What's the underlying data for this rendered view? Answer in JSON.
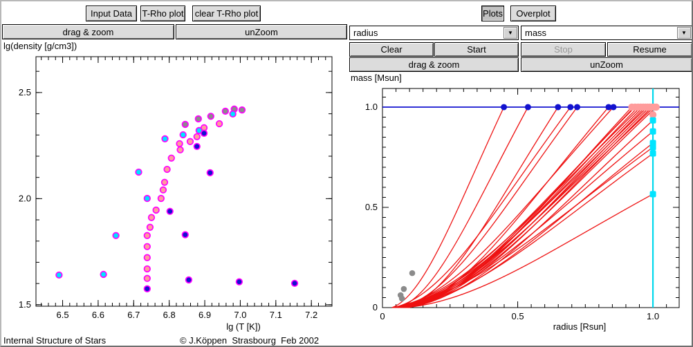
{
  "footer": {
    "app_title": "Internal Structure of Stars",
    "credit": "© J.Köppen  Strasbourg  Feb 2002"
  },
  "left_panel": {
    "buttons": {
      "input_data": "Input Data",
      "trho_plot": "T-Rho plot",
      "clear_trho": "clear T-Rho plot",
      "drag_zoom": "drag & zoom",
      "unzoom": "unZoom"
    }
  },
  "right_panel": {
    "buttons": {
      "plots": "Plots",
      "overplot": "Overplot",
      "clear": "Clear",
      "start": "Start",
      "stop": "Stop",
      "resume": "Resume",
      "drag_zoom": "drag & zoom",
      "unzoom": "unZoom"
    },
    "dropdowns": {
      "x_variable": "radius",
      "y_variable": "mass"
    }
  },
  "colors": {
    "marker_ring": "#ff00ff",
    "cyan_fill": "#00e4ff",
    "salmon_fill": "#ff9c9c",
    "gray_fill": "#8b8b8b",
    "blue_fill": "#1212cf",
    "red_curve": "#ee1111",
    "mass_limit_line": "#0000cc",
    "radius_limit_line": "#00d8ec",
    "button_gray": "#dcdcdc"
  },
  "chart_data": [
    {
      "type": "scatter",
      "title": "T-Rho diagram",
      "xlabel": "lg (T [K])",
      "ylabel": "lg(density [g/cm3])",
      "xlim": [
        6.425,
        7.258
      ],
      "ylim": [
        1.493,
        2.669
      ],
      "x_ticks": {
        "values": [
          6.5,
          6.6,
          6.7,
          6.8,
          6.9,
          7.0,
          7.1,
          7.2
        ],
        "labels": [
          "6.5",
          "6.6",
          "6.7",
          "6.8",
          "6.9",
          "7.0",
          "7.1",
          "7.2"
        ]
      },
      "x_minor": 0.02,
      "y_ticks": {
        "values": [
          1.5,
          2.0,
          2.5
        ],
        "labels": [
          "1.5",
          "2.0",
          "2.5"
        ]
      },
      "y_minor": 0.1,
      "series": [
        {
          "name": "gray-points",
          "color": "#8b8b8b",
          "ring": "#ff00ff",
          "points": [
            [
              6.845,
              2.35
            ],
            [
              6.882,
              2.376
            ],
            [
              6.917,
              2.388
            ],
            [
              6.958,
              2.412
            ],
            [
              6.983,
              2.422
            ],
            [
              7.005,
              2.418
            ]
          ]
        },
        {
          "name": "salmon-points",
          "color": "#ff9c9c",
          "ring": "#ff00ff",
          "points": [
            [
              6.738,
              1.624
            ],
            [
              6.738,
              1.669
            ],
            [
              6.738,
              1.722
            ],
            [
              6.738,
              1.774
            ],
            [
              6.738,
              1.826
            ],
            [
              6.746,
              1.865
            ],
            [
              6.75,
              1.911
            ],
            [
              6.763,
              1.946
            ],
            [
              6.777,
              2.001
            ],
            [
              6.783,
              2.041
            ],
            [
              6.787,
              2.077
            ],
            [
              6.794,
              2.138
            ],
            [
              6.806,
              2.191
            ],
            [
              6.831,
              2.23
            ],
            [
              6.829,
              2.259
            ],
            [
              6.859,
              2.269
            ],
            [
              6.878,
              2.292
            ],
            [
              6.898,
              2.334
            ],
            [
              6.941,
              2.353
            ]
          ]
        },
        {
          "name": "cyan-points",
          "color": "#00e4ff",
          "ring": "#ff00ff",
          "points": [
            [
              6.49,
              1.64
            ],
            [
              6.615,
              1.643
            ],
            [
              6.65,
              1.826
            ],
            [
              6.714,
              2.125
            ],
            [
              6.738,
              2.001
            ],
            [
              6.788,
              2.282
            ],
            [
              6.839,
              2.301
            ],
            [
              6.884,
              2.321
            ],
            [
              6.979,
              2.399
            ]
          ]
        },
        {
          "name": "blue-points",
          "color": "#1212cf",
          "ring": "#ff00ff",
          "points": [
            [
              6.738,
              1.575
            ],
            [
              6.802,
              1.94
            ],
            [
              6.845,
              1.83
            ],
            [
              6.855,
              1.617
            ],
            [
              6.878,
              2.246
            ],
            [
              6.898,
              2.308
            ],
            [
              6.915,
              2.122
            ],
            [
              6.997,
              1.608
            ],
            [
              7.153,
              1.601
            ]
          ]
        }
      ]
    },
    {
      "type": "line",
      "title": "mass vs radius structure curves",
      "xlabel": "radius [Rsun]",
      "ylabel": "mass [Msun]",
      "xlim": [
        0,
        1.097
      ],
      "ylim": [
        0,
        1.093
      ],
      "x_ticks": {
        "values": [
          0,
          0.5,
          1.0
        ],
        "labels": [
          "0",
          "0.5",
          "1.0"
        ]
      },
      "x_minor": 0.05,
      "y_ticks": {
        "values": [
          0,
          0.5,
          1.0
        ],
        "labels": [
          "0",
          "0.5",
          "1.0"
        ]
      },
      "y_minor": 0.05,
      "mass_limit_line": {
        "y": 1.0,
        "color": "#0000cc"
      },
      "radius_limit_line": {
        "x": 1.0,
        "color": "#00d8ec"
      },
      "curve_color": "#ee1111",
      "curves": {
        "to_mass_limit_radii": [
          0.449,
          0.538,
          0.649,
          0.695,
          0.72,
          0.836,
          0.854,
          0.931
        ],
        "to_cluster_radii": [
          0.922,
          0.934,
          0.945,
          0.955,
          0.964,
          0.972,
          0.98,
          0.988,
          0.996,
          1.004,
          1.012
        ],
        "to_radius_limit_masses": [
          0.934,
          0.879,
          0.821,
          0.8,
          0.769,
          0.566
        ]
      },
      "markers": {
        "blue_on_mass_line": {
          "color": "#1212cf",
          "radii": [
            0.449,
            0.538,
            0.649,
            0.695,
            0.72,
            0.836,
            0.854,
            0.931
          ]
        },
        "salmon_on_mass_line": {
          "color": "#ff9c9c",
          "radii": [
            0.922,
            0.934,
            0.945,
            0.955,
            0.964,
            0.972,
            0.98,
            0.988,
            0.996,
            1.004,
            1.012
          ]
        },
        "salmon_extra_point": {
          "color": "#ff9c9c",
          "point": [
            1.0,
            0.962
          ]
        },
        "cyan_on_radius_line": {
          "color": "#00e4ff",
          "masses": [
            0.934,
            0.879,
            0.821,
            0.8,
            0.769,
            0.566
          ]
        },
        "gray_points": {
          "color": "#8b8b8b",
          "points": [
            [
              0.11,
              0.172
            ],
            [
              0.079,
              0.093
            ],
            [
              0.067,
              0.062
            ],
            [
              0.072,
              0.045
            ]
          ]
        }
      }
    }
  ]
}
